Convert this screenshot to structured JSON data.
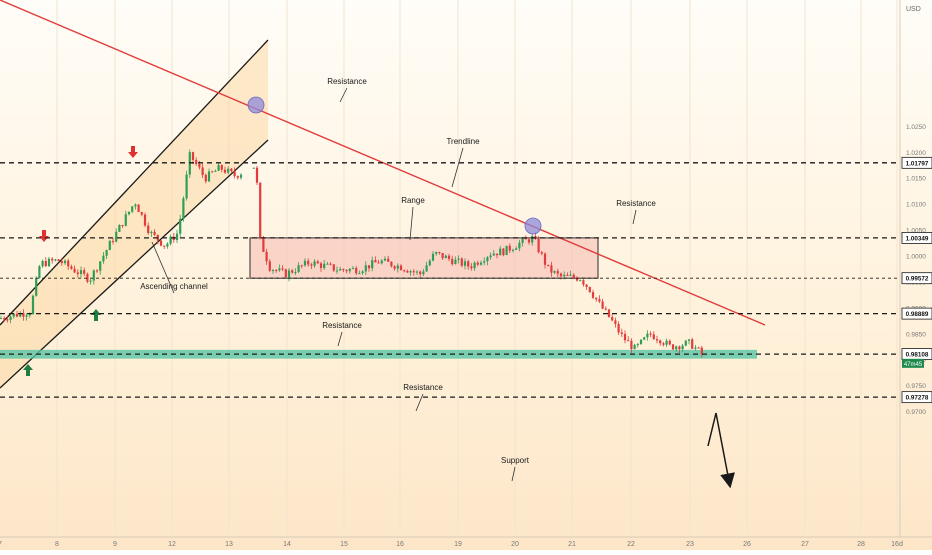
{
  "chart_data": {
    "type": "candlestick",
    "currency": "USD",
    "instrument_price_tag": "47m45",
    "x_tick_labels": [
      "7",
      "8",
      "9",
      "12",
      "13",
      "14",
      "15",
      "16",
      "19",
      "20",
      "21",
      "22",
      "23",
      "26",
      "27",
      "28",
      "16d"
    ],
    "y_tick_labels": [
      0.97,
      0.975,
      0.98,
      0.985,
      0.99,
      0.995,
      1.0,
      1.005,
      1.01,
      1.015,
      1.02,
      1.025
    ],
    "ylim": [
      0.968,
      1.031
    ],
    "marked_levels": [
      {
        "value": 1.01797,
        "label": "1.01797"
      },
      {
        "value": 1.00349,
        "label": "1.00349"
      },
      {
        "value": 0.99572,
        "label": "0.99572"
      },
      {
        "value": 0.98889,
        "label": "0.98889"
      },
      {
        "value": 0.98108,
        "label": "0.98108"
      },
      {
        "value": 0.97278,
        "label": "0.97278"
      }
    ],
    "annotations": [
      {
        "text": "Resistance",
        "target": "1.01797 level"
      },
      {
        "text": "Trendline",
        "target": "descending red trendline"
      },
      {
        "text": "Range",
        "target": "range box 0.99572–1.00349"
      },
      {
        "text": "Resistance",
        "target": "1.00349 level"
      },
      {
        "text": "Ascending channel",
        "target": "ascending channel"
      },
      {
        "text": "Resistance",
        "target": "0.98889 level"
      },
      {
        "text": "Resistance",
        "target": "resistance zone at 0.98108"
      },
      {
        "text": "Support",
        "target": "0.97278 level"
      }
    ],
    "range_box": {
      "low": 0.99572,
      "high": 1.00349
    },
    "resistance_zone": {
      "low": 0.9802,
      "high": 0.9819
    },
    "colors": {
      "background_top": "#fffdf7",
      "background_bottom": "#fde9cf",
      "trendline": "#e23b3b",
      "channel": "#1a1a1a",
      "channel_fill": "#fbd9a6",
      "range_fill": "#f8b9b4",
      "zone_fill": "#58c5a6",
      "candle_up": "#2e9e55",
      "candle_down": "#e23b3b",
      "marker_circle": "#8e8bd8",
      "last_price_tag": "#1f8a4c"
    }
  }
}
